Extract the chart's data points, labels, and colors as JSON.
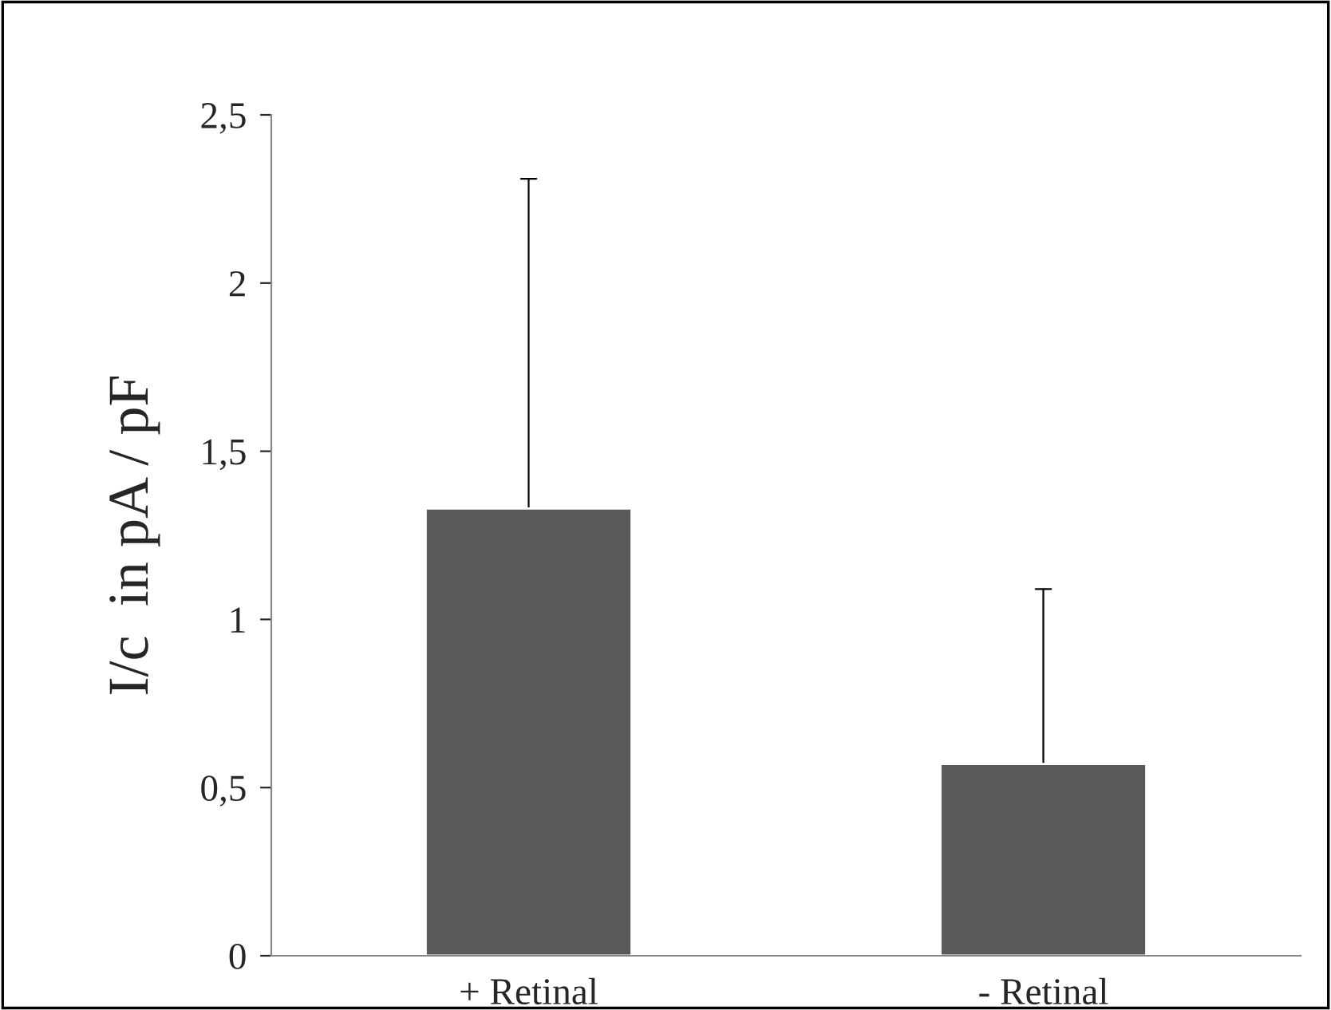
{
  "chart_data": {
    "type": "bar",
    "ylabel": "I/c  in pA / pF",
    "categories": [
      "+ Retinal",
      "- Retinal"
    ],
    "values": [
      1.33,
      0.57
    ],
    "errors": [
      [
        1.33,
        2.31
      ],
      [
        0.57,
        1.09
      ]
    ],
    "color": "#595959",
    "ylim": [
      0,
      2.5
    ],
    "yticks": [
      0,
      {
        "value": 0.5,
        "label": "0,5"
      },
      1,
      {
        "value": 1.5,
        "label": "1,5"
      },
      2,
      {
        "value": 2.5,
        "label": "2,5"
      }
    ],
    "grid": false
  }
}
